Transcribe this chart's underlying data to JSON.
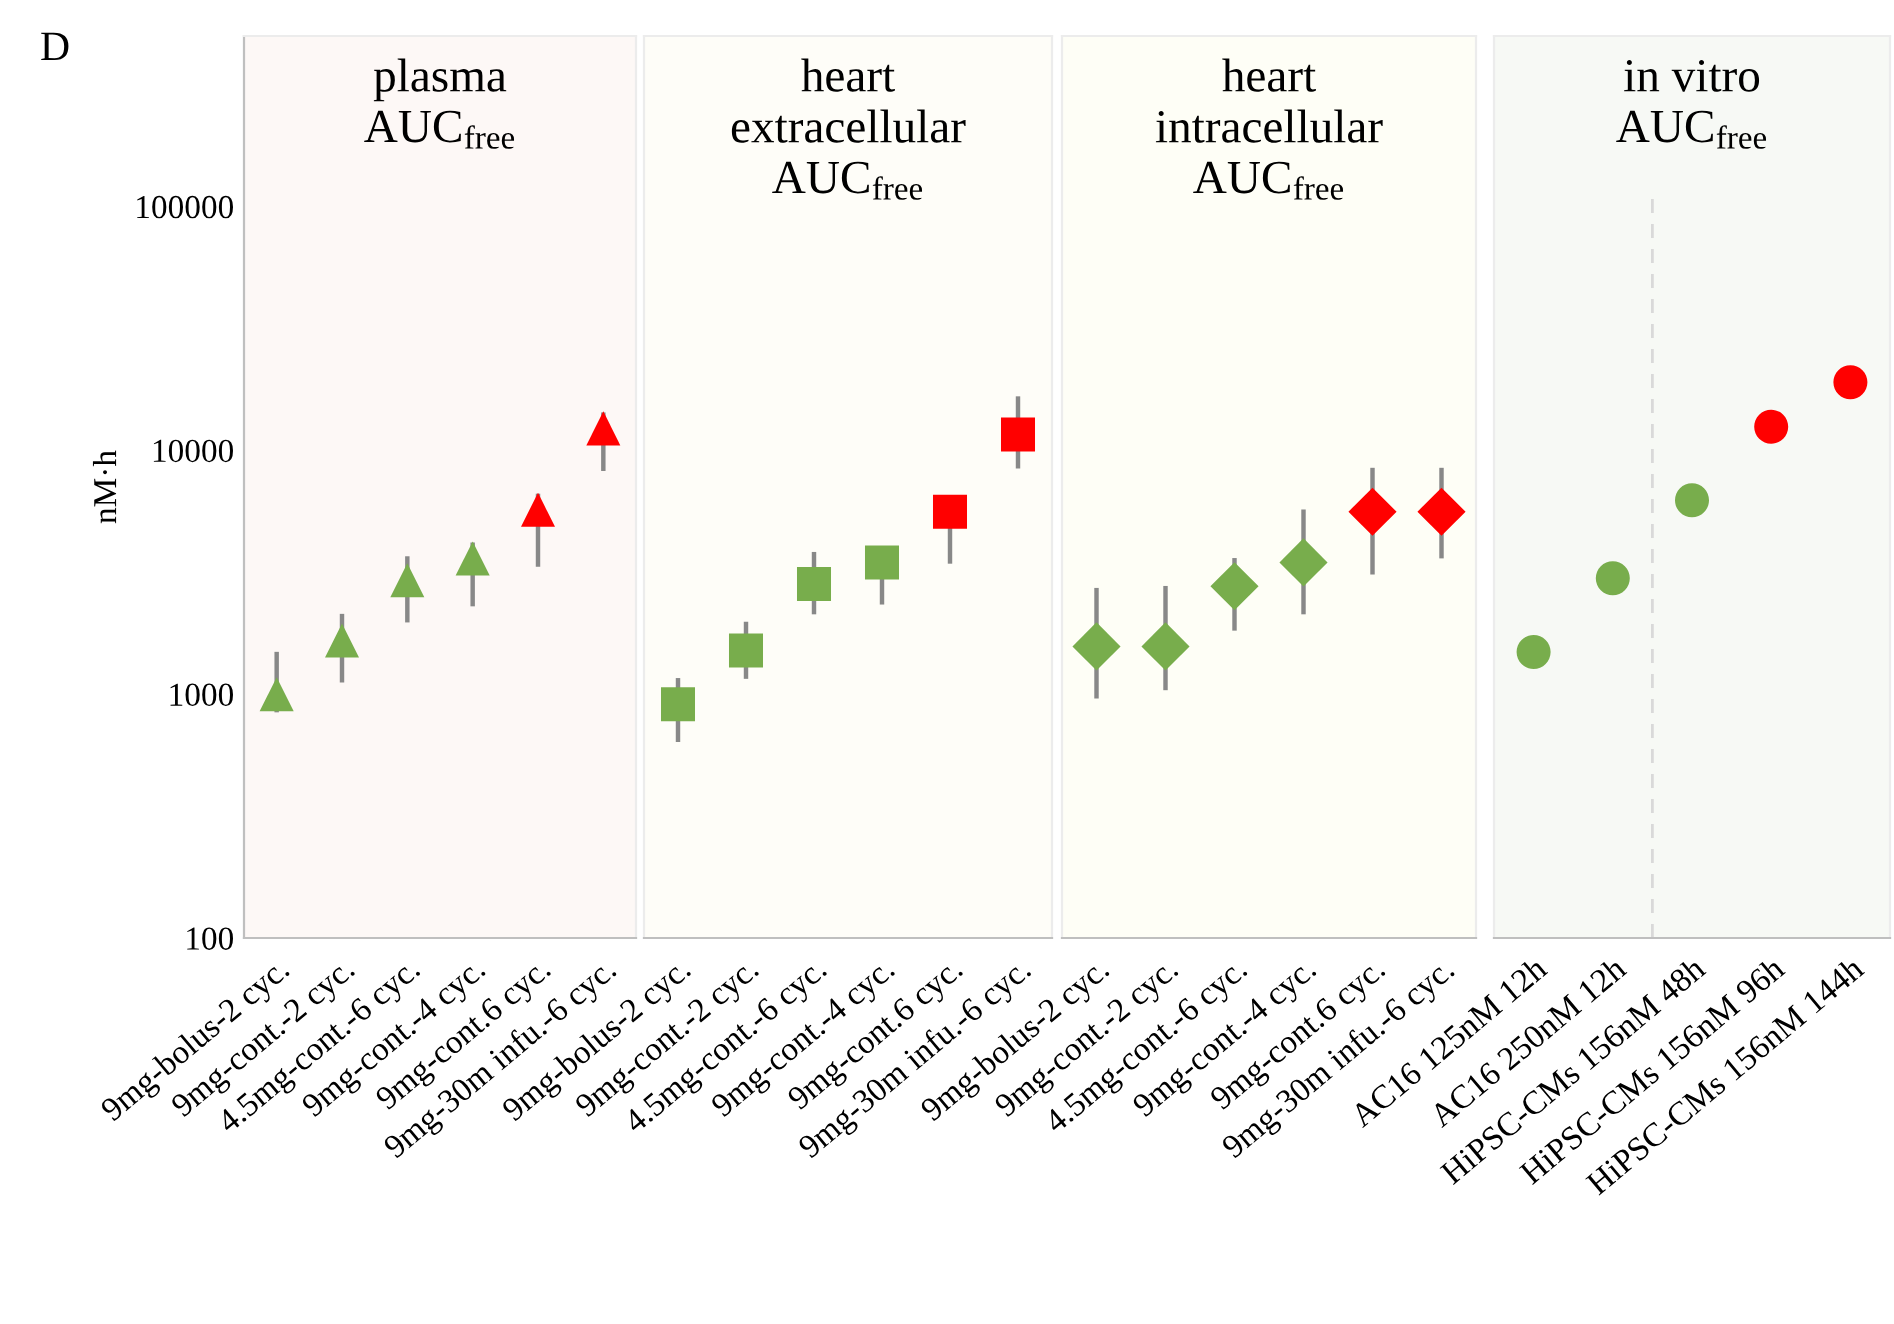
{
  "chart_data": [
    {
      "type": "scatter",
      "title": "plasma\nAUC$_{free}$",
      "ylabel": "nM·h",
      "annotations": [
        "D"
      ],
      "log": "y",
      "ylim": [
        100,
        500000
      ],
      "yticks": [
        100,
        1000,
        10000,
        100000
      ],
      "marker": "triangle",
      "grid": false,
      "categories": [
        "9mg-bolus-2 cyc.",
        "9mg-cont.-2 cyc.",
        "4.5mg-cont.-6 cyc.",
        "9mg-cont.-4 cyc.",
        "9mg-cont.6 cyc.",
        "9mg-30m infu.-6 cyc."
      ],
      "series": [
        {
          "colors": [
            "#78ad4c",
            "#78ad4c",
            "#78ad4c",
            "#78ad4c",
            "#ff0000",
            "#ff0000"
          ],
          "values": [
            1000,
            1660,
            2930,
            3600,
            5700,
            12300
          ],
          "errors": [
            [
              860,
              1460
            ],
            [
              1140,
              2090
            ],
            [
              2010,
              3600
            ],
            [
              2340,
              4100
            ],
            [
              3400,
              6500
            ],
            [
              8400,
              14000
            ]
          ]
        }
      ]
    },
    {
      "type": "scatter",
      "title": "heart\nextracellular\nAUC$_{free}$",
      "log": "y",
      "ylim": [
        100,
        500000
      ],
      "tick_labels": "x",
      "marker": "square",
      "grid": false,
      "categories": [
        "9mg-bolus-2 cyc.",
        "9mg-cont.-2 cyc.",
        "4.5mg-cont.-6 cyc.",
        "9mg-cont.-4 cyc.",
        "9mg-cont.6 cyc.",
        "9mg-30m infu.-6 cyc."
      ],
      "series": [
        {
          "colors": [
            "#78ad4c",
            "#78ad4c",
            "#78ad4c",
            "#78ad4c",
            "#ff0000",
            "#ff0000"
          ],
          "values": [
            910,
            1510,
            2830,
            3470,
            5600,
            11600
          ],
          "errors": [
            [
              650,
              1140
            ],
            [
              1180,
              1940
            ],
            [
              2170,
              3750
            ],
            [
              2380,
              3900
            ],
            [
              3500,
              6300
            ],
            [
              8600,
              16300
            ]
          ]
        }
      ]
    },
    {
      "type": "scatter",
      "title": "heart\nintracellular\nAUC$_{free}$",
      "log": "y",
      "ylim": [
        100,
        500000
      ],
      "tick_labels": "x",
      "marker": "diamond",
      "grid": false,
      "categories": [
        "9mg-bolus-2 cyc.",
        "9mg-cont.-2 cyc.",
        "4.5mg-cont.-6 cyc.",
        "9mg-cont.-4 cyc.",
        "9mg-cont.6 cyc.",
        "9mg-30m infu.-6 cyc."
      ],
      "series": [
        {
          "colors": [
            "#78ad4c",
            "#78ad4c",
            "#78ad4c",
            "#78ad4c",
            "#ff0000",
            "#ff0000"
          ],
          "values": [
            1570,
            1570,
            2770,
            3470,
            5600,
            5600
          ],
          "errors": [
            [
              980,
              2670
            ],
            [
              1060,
              2720
            ],
            [
              1860,
              3540
            ],
            [
              2170,
              5600
            ],
            [
              3160,
              8300
            ],
            [
              3680,
              8300
            ]
          ]
        }
      ]
    },
    {
      "type": "scatter",
      "title": "in vitro\nAUC$_{free}$",
      "log": "y",
      "ylim": [
        100,
        500000
      ],
      "tick_labels": "x",
      "marker": "circle",
      "grid": false,
      "categories": [
        "AC16 125nM 12h",
        "AC16 250nM 12h",
        "HiPSC-CMs 156nM 48h",
        "HiPSC-CMs 156nM 96h",
        "HiPSC-CMs 156nM 144h"
      ],
      "series": [
        {
          "colors": [
            "#78ad4c",
            "#78ad4c",
            "#78ad4c",
            "#ff0000",
            "#ff0000"
          ],
          "values": [
            1490,
            2990,
            6240,
            12500,
            19000
          ]
        }
      ]
    }
  ]
}
